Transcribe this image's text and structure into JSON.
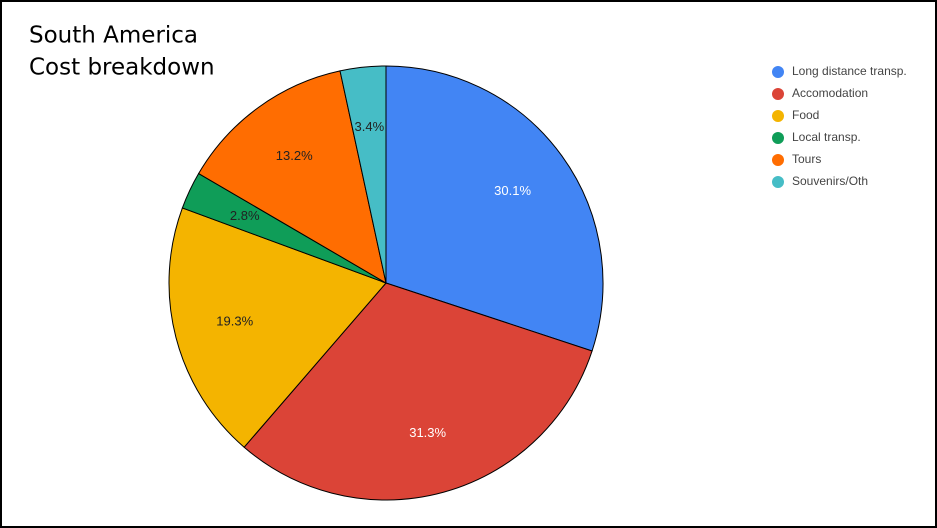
{
  "chart_data": {
    "type": "pie",
    "title": "South America",
    "subtitle": "Cost breakdown",
    "categories": [
      "Long distance transp.",
      "Accomodation",
      "Food",
      "Local transp.",
      "Tours",
      "Souvenirs/Oth"
    ],
    "values": [
      30.1,
      31.3,
      19.3,
      2.8,
      13.2,
      3.4
    ],
    "value_labels": [
      "30.1%",
      "31.3%",
      "19.3%",
      "2.8%",
      "13.2%",
      "3.4%"
    ],
    "colors": [
      "#4285f4",
      "#db4437",
      "#f4b400",
      "#0f9d58",
      "#ff6d01",
      "#46bdc6"
    ],
    "label_colors": [
      "#ffffff",
      "#ffffff",
      "#222222",
      "#222222",
      "#222222",
      "#222222"
    ],
    "legend": "right"
  }
}
